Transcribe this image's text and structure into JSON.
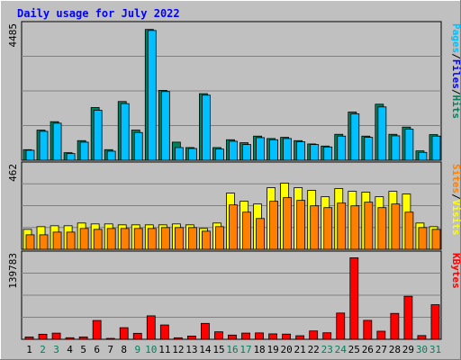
{
  "title": "Daily usage for July 2022",
  "colors": {
    "hits": "#00805c",
    "files": "#0000ff",
    "pages": "#00c0ff",
    "visits": "#ffff00",
    "sites": "#ff8000",
    "kbytes": "#ff0000",
    "weekend_day": "#00805c",
    "weekday": "#000000",
    "title": "#0000ff"
  },
  "chart_data": [
    {
      "type": "bar",
      "name": "hits-files-pages",
      "x": [
        1,
        2,
        3,
        4,
        5,
        6,
        7,
        8,
        9,
        10,
        11,
        12,
        13,
        14,
        15,
        16,
        17,
        18,
        19,
        20,
        21,
        22,
        23,
        24,
        25,
        26,
        27,
        28,
        29,
        30,
        31
      ],
      "y_max_label": "4485",
      "ylim": [
        0,
        4485
      ],
      "legend": [
        "Pages",
        "/",
        "Files",
        "/",
        "Hits"
      ],
      "series": [
        {
          "name": "Hits",
          "values": [
            350,
            1000,
            1280,
            250,
            650,
            1750,
            350,
            1950,
            1000,
            4345,
            2320,
            600,
            420,
            2210,
            420,
            680,
            580,
            800,
            720,
            760,
            650,
            540,
            470,
            860,
            1600,
            800,
            1860,
            860,
            1100,
            310,
            850
          ]
        },
        {
          "name": "Pages",
          "values": [
            330,
            960,
            1230,
            220,
            600,
            1660,
            300,
            1880,
            920,
            4310,
            2280,
            420,
            390,
            2160,
            370,
            630,
            520,
            750,
            680,
            720,
            610,
            520,
            440,
            800,
            1540,
            760,
            1770,
            810,
            1030,
            260,
            800
          ]
        }
      ]
    },
    {
      "type": "bar",
      "name": "visits-sites",
      "x": [
        1,
        2,
        3,
        4,
        5,
        6,
        7,
        8,
        9,
        10,
        11,
        12,
        13,
        14,
        15,
        16,
        17,
        18,
        19,
        20,
        21,
        22,
        23,
        24,
        25,
        26,
        27,
        28,
        29,
        30,
        31
      ],
      "y_max_label": "462",
      "ylim": [
        0,
        462
      ],
      "legend": [
        "Sites",
        "/",
        "Visits"
      ],
      "series": [
        {
          "name": "Visits",
          "values": [
            110,
            125,
            130,
            130,
            145,
            140,
            140,
            135,
            135,
            135,
            135,
            140,
            135,
            115,
            145,
            310,
            265,
            250,
            340,
            365,
            340,
            325,
            290,
            335,
            320,
            315,
            290,
            320,
            305,
            145,
            125
          ]
        },
        {
          "name": "Sites",
          "values": [
            80,
            80,
            95,
            95,
            115,
            110,
            115,
            115,
            115,
            115,
            120,
            120,
            120,
            100,
            125,
            245,
            205,
            170,
            265,
            285,
            270,
            240,
            230,
            255,
            240,
            260,
            230,
            250,
            205,
            120,
            110
          ]
        }
      ]
    },
    {
      "type": "bar",
      "name": "kbytes",
      "x": [
        1,
        2,
        3,
        4,
        5,
        6,
        7,
        8,
        9,
        10,
        11,
        12,
        13,
        14,
        15,
        16,
        17,
        18,
        19,
        20,
        21,
        22,
        23,
        24,
        25,
        26,
        27,
        28,
        29,
        30,
        31
      ],
      "y_max_label": "139783",
      "ylim": [
        0,
        139783
      ],
      "legend": [
        "KBytes"
      ],
      "series": [
        {
          "name": "KBytes",
          "values": [
            3800,
            8400,
            10200,
            2600,
            3900,
            31100,
            1400,
            19200,
            9900,
            38800,
            23700,
            2500,
            5400,
            26300,
            12400,
            7000,
            10300,
            10600,
            9000,
            8600,
            5900,
            13800,
            10800,
            43400,
            134700,
            31300,
            13400,
            42800,
            71100,
            6200,
            57200
          ]
        }
      ]
    }
  ],
  "x_labels": [
    "1",
    "2",
    "3",
    "4",
    "5",
    "6",
    "7",
    "8",
    "9",
    "10",
    "11",
    "12",
    "13",
    "14",
    "15",
    "16",
    "17",
    "18",
    "19",
    "20",
    "21",
    "22",
    "23",
    "24",
    "25",
    "26",
    "27",
    "28",
    "29",
    "30",
    "31"
  ],
  "weekend_days": [
    2,
    3,
    9,
    10,
    16,
    17,
    23,
    24,
    30,
    31
  ]
}
